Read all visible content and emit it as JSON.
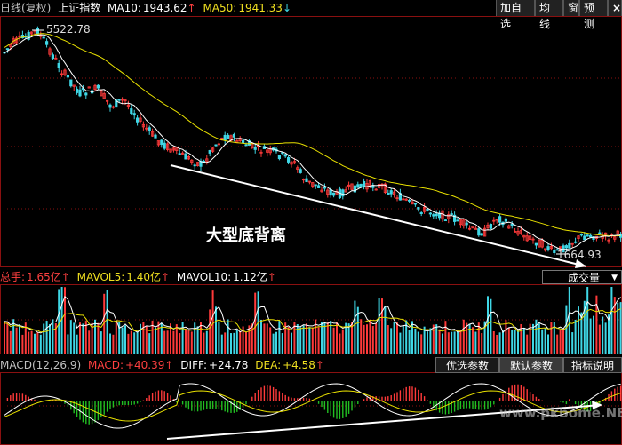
{
  "header": {
    "period": "日线(复权)",
    "index_name": "上证指数",
    "ma10_label": "MA10:",
    "ma10_value": "1943.62",
    "ma10_arrow": "↑",
    "ma50_label": "MA50:",
    "ma50_value": "1941.33",
    "ma50_arrow": "↓",
    "buttons": [
      "加自选",
      "均线",
      "窗",
      "预测"
    ]
  },
  "price_chart": {
    "high_label": "5522.78",
    "low_label": "1664.93",
    "annotation": "大型底背离"
  },
  "volume_panel": {
    "total_label": "总手:",
    "total_value": "1.65亿",
    "mavol5_label": "MAVOL5:",
    "mavol5_value": "1.40亿",
    "mavol10_label": "MAVOL10:",
    "mavol10_value": "1.12亿",
    "up_arrow": "↑",
    "selector": "成交量"
  },
  "macd_panel": {
    "name": "MACD(12,26,9)",
    "macd_label": "MACD:",
    "macd_value": "+40.39",
    "diff_label": "DIFF:",
    "diff_value": "+24.78",
    "dea_label": "DEA:",
    "dea_value": "+4.58",
    "up_arrow": "↑",
    "tabs": [
      "优选参数",
      "默认参数",
      "指标说明"
    ],
    "watermark": "www.pkbome.NET"
  },
  "colors": {
    "up": "#ff3a3a",
    "down": "#3fd7e6",
    "ma_short": "#ffffff",
    "ma_long": "#e8e000",
    "neg_hist": "#22c022"
  }
}
